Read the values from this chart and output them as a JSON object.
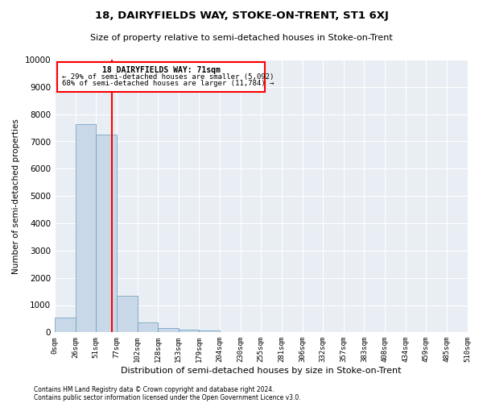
{
  "title": "18, DAIRYFIELDS WAY, STOKE-ON-TRENT, ST1 6XJ",
  "subtitle": "Size of property relative to semi-detached houses in Stoke-on-Trent",
  "xlabel": "Distribution of semi-detached houses by size in Stoke-on-Trent",
  "ylabel": "Number of semi-detached properties",
  "footnote1": "Contains HM Land Registry data © Crown copyright and database right 2024.",
  "footnote2": "Contains public sector information licensed under the Open Government Licence v3.0.",
  "bar_values": [
    550,
    7650,
    7250,
    1350,
    350,
    150,
    100,
    75,
    0,
    0,
    0,
    0,
    0,
    0,
    0,
    0,
    0,
    0,
    0
  ],
  "tick_labels": [
    "0sqm",
    "26sqm",
    "51sqm",
    "77sqm",
    "102sqm",
    "128sqm",
    "153sqm",
    "179sqm",
    "204sqm",
    "230sqm",
    "255sqm",
    "281sqm",
    "306sqm",
    "332sqm",
    "357sqm",
    "383sqm",
    "408sqm",
    "434sqm",
    "459sqm",
    "485sqm",
    "510sqm"
  ],
  "bar_color": "#c8d8e8",
  "bar_edge_color": "#6699bb",
  "bg_color": "#e8eef4",
  "grid_color": "#ffffff",
  "red_line_x": 71,
  "annotation_text_line1": "18 DAIRYFIELDS WAY: 71sqm",
  "annotation_text_line2": "← 29% of semi-detached houses are smaller (5,092)",
  "annotation_text_line3": "68% of semi-detached houses are larger (11,784) →",
  "ylim": [
    0,
    10000
  ],
  "yticks": [
    0,
    1000,
    2000,
    3000,
    4000,
    5000,
    6000,
    7000,
    8000,
    9000,
    10000
  ],
  "bin_width": 25.5,
  "title_fontsize": 9.5,
  "subtitle_fontsize": 8,
  "ylabel_fontsize": 7.5,
  "xlabel_fontsize": 8
}
